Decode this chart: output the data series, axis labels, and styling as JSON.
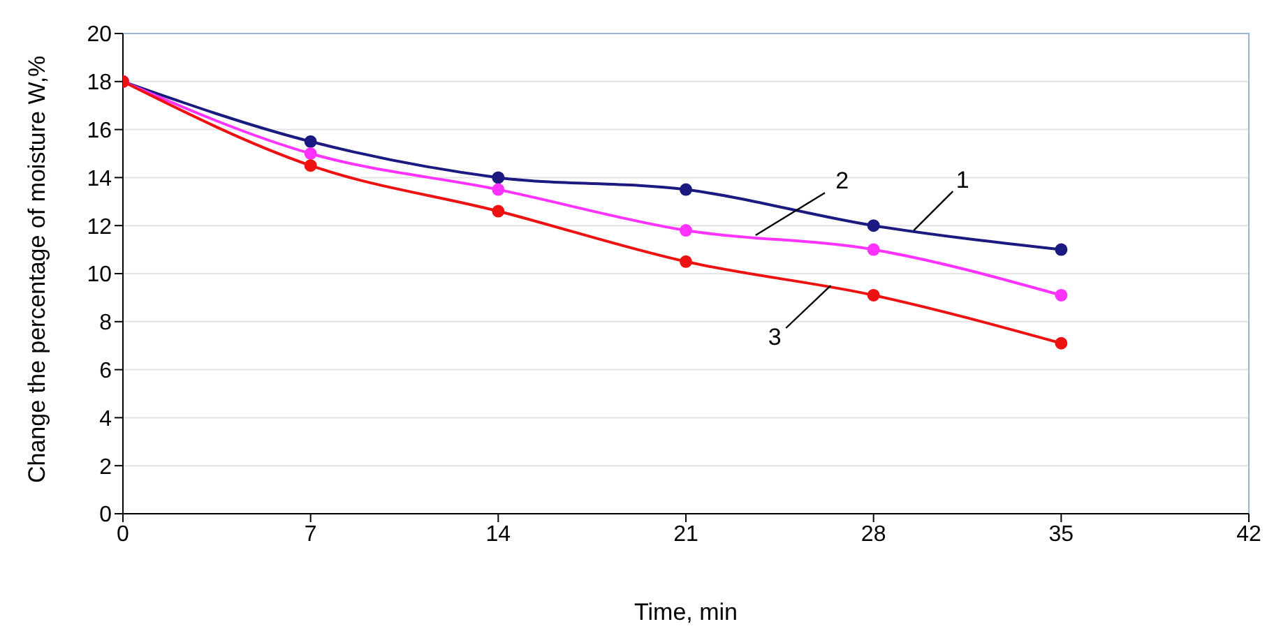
{
  "chart_data": {
    "type": "line",
    "xlabel": "Time, min",
    "ylabel": "Change the percentage of moisture W,%",
    "x": [
      0,
      7,
      14,
      21,
      28,
      35
    ],
    "series": [
      {
        "color": "#1a1a80",
        "values": [
          18,
          15.5,
          14,
          13.5,
          12,
          11
        ]
      },
      {
        "color": "#ff33ff",
        "values": [
          18,
          15,
          13.5,
          11.8,
          11,
          9.1
        ]
      },
      {
        "color": "#ee1111",
        "values": [
          18,
          14.5,
          12.6,
          10.5,
          9.1,
          7.1
        ]
      }
    ],
    "xlim": [
      0,
      42
    ],
    "xticks": [
      0,
      7,
      14,
      21,
      28,
      35,
      42
    ],
    "ylim": [
      0,
      20
    ],
    "yticks": [
      0,
      2,
      4,
      6,
      8,
      10,
      12,
      14,
      16,
      18,
      20
    ],
    "grid": "y",
    "marker": "circle",
    "line_style": "solid",
    "legend": false,
    "annotations": [
      {
        "text": "1",
        "x": 29.5,
        "y": 11.8
      },
      {
        "text": "2",
        "x": 23.6,
        "y": 11.6
      },
      {
        "text": "3",
        "x": 26.4,
        "y": 9.5
      }
    ]
  }
}
